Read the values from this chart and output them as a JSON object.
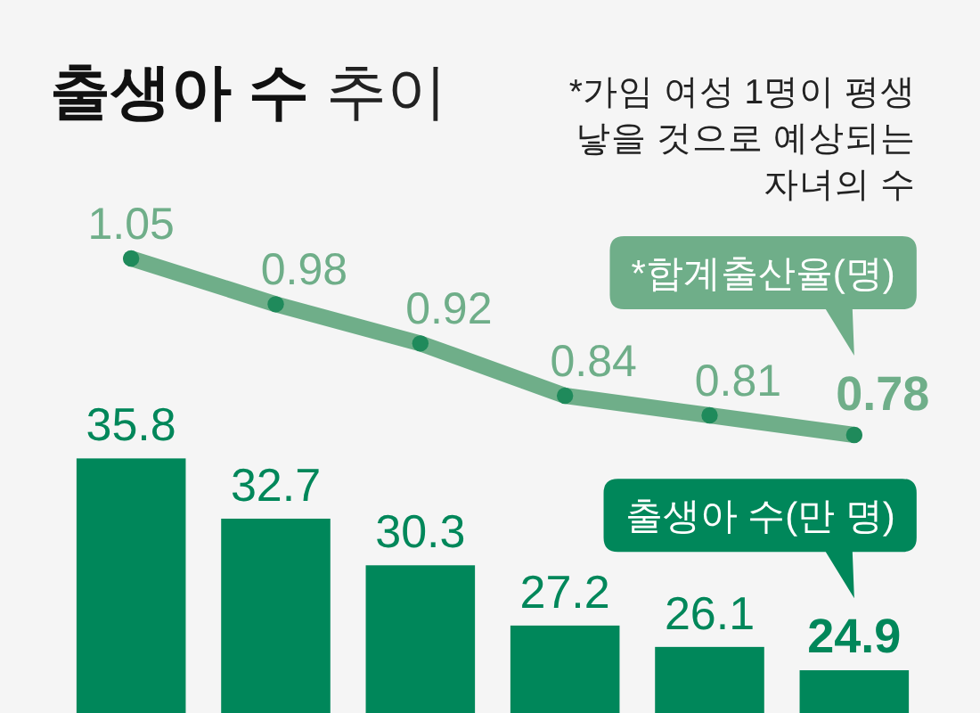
{
  "chart_data": [
    {
      "type": "line",
      "title": "**출생아 수** 추이",
      "annotations": [
        "*가임 여성 1명이 평생 낳을 것으로 예상되는 자녀의 수"
      ],
      "categories": [
        null,
        null,
        null,
        null,
        null,
        null
      ],
      "series": [
        {
          "name": "*합계출산율(명)",
          "color": "#6fae89",
          "colors": [
            "#1f8a5b",
            "#1f8a5b",
            "#1f8a5b",
            "#1f8a5b",
            "#1f8a5b",
            "#1f8a5b"
          ],
          "values": [
            1.05,
            0.98,
            0.92,
            0.84,
            0.81,
            0.78
          ]
        }
      ],
      "data_labels": true,
      "marker": "circle"
    },
    {
      "type": "bar",
      "categories": [
        null,
        null,
        null,
        null,
        null,
        null
      ],
      "series": [
        {
          "name": "출생아 수(만 명)",
          "color": "#00875a",
          "values": [
            35.8,
            32.7,
            30.3,
            27.2,
            26.1,
            24.9
          ]
        }
      ],
      "ylim": [
        22.7,
        36
      ],
      "data_labels": true
    }
  ]
}
